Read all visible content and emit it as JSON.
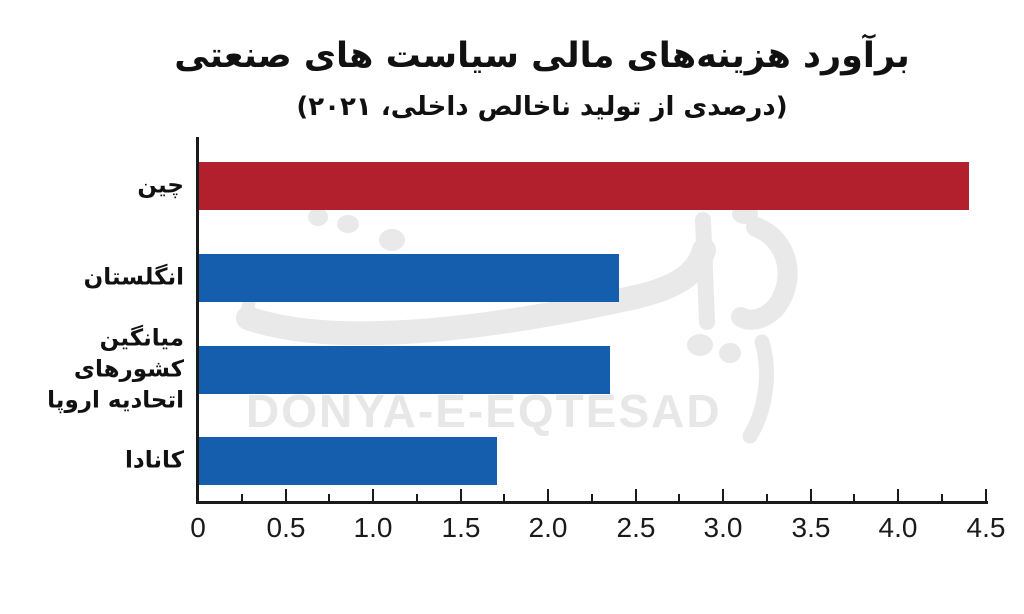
{
  "watermark": {
    "latin": "DONYA-E-EQTESAD",
    "persian": "دنیای اقتصاد",
    "color": "#e7e7e7"
  },
  "chart_data": {
    "type": "bar",
    "orientation": "horizontal",
    "title": "برآورد هزینه‌های مالی سیاست های صنعتی",
    "subtitle": "(درصدی از تولید ناخالص داخلی، ۲۰۲۱)",
    "categories": [
      "چین",
      "انگلستان",
      "میانگین کشورهای اتحادیه اروپا",
      "کانادا"
    ],
    "values": [
      4.4,
      2.4,
      2.35,
      1.7
    ],
    "series_colors": [
      "#B2202E",
      "#155DAD",
      "#155DAD",
      "#155DAD"
    ],
    "xlim": [
      0,
      4.5
    ],
    "x_major_tick_step": 0.5,
    "x_minor_tick_step": 0.25,
    "x_tick_labels": [
      "0",
      "0.5",
      "1.0",
      "1.5",
      "2.0",
      "2.5",
      "3.0",
      "3.5",
      "4.0",
      "4.5"
    ],
    "grid": false,
    "legend": false,
    "axis_color": "#1a1a1a",
    "text_color": "#111111"
  }
}
